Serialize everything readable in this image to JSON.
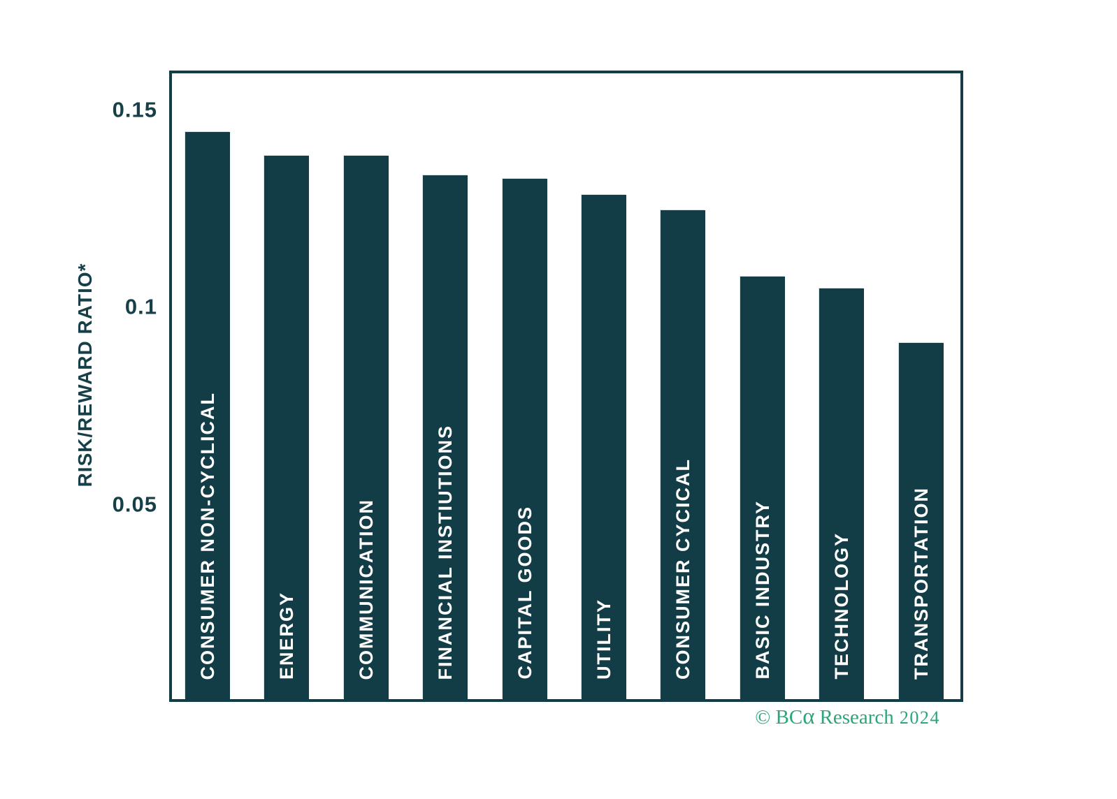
{
  "chart_data": {
    "type": "bar",
    "categories": [
      "CONSUMER NON-CYCLICAL",
      "ENERGY",
      "COMMUNICATION",
      "FINANCIAL INSTIUTIONS",
      "CAPITAL GOODS",
      "UTILITY",
      "CONSUMER CYCICAL",
      "BASIC INDUSTRY",
      "TECHNOLOGY",
      "TRANSPORTATION"
    ],
    "values": [
      0.145,
      0.139,
      0.139,
      0.134,
      0.133,
      0.129,
      0.125,
      0.108,
      0.105,
      0.091
    ],
    "title": "",
    "xlabel": "",
    "ylabel": "RISK/REWARD RATIO*",
    "ylim": [
      0,
      0.16
    ],
    "yticks": [
      {
        "value": 0.05,
        "label": "0.05"
      },
      {
        "value": 0.1,
        "label": "0.1"
      },
      {
        "value": 0.15,
        "label": "0.15"
      }
    ],
    "grid": false,
    "legend": "none",
    "bar_labels_position": "inside-bottom-rotated",
    "bar_color": "#123d46",
    "bar_label_color": "#ffffff",
    "axis_color": "#123d46",
    "axis_text_color": "#173f48"
  },
  "footer": {
    "prefix": "© BC",
    "alpha": "α",
    "rest": "Research",
    "year": "2024",
    "color": "#2ca678"
  }
}
